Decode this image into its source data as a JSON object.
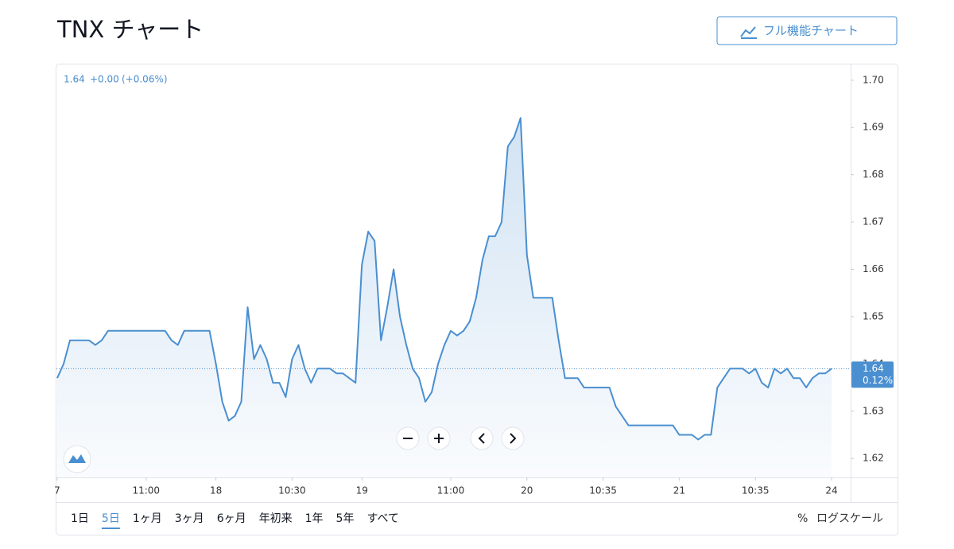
{
  "header": {
    "title": "TNX チャート",
    "button": "フル機能チャート"
  },
  "chart": {
    "type": "line",
    "legend": {
      "price": "1.64",
      "change": "+0.00",
      "change_pct": "(+0.06%)"
    },
    "last_badge": {
      "price": "1.64",
      "pct": "0.12%"
    },
    "color": "#4a8fd0",
    "ylim": [
      1.616,
      1.7035
    ],
    "yticks": [
      1.62,
      1.63,
      1.64,
      1.65,
      1.66,
      1.67,
      1.68,
      1.69,
      {
        "value": 1.7,
        "label": "1.70"
      }
    ],
    "categories": [
      "7",
      null,
      null,
      null,
      null,
      null,
      null,
      null,
      null,
      null,
      null,
      null,
      null,
      null,
      "11:00",
      null,
      null,
      null,
      null,
      null,
      null,
      null,
      null,
      null,
      null,
      "18",
      null,
      null,
      null,
      null,
      null,
      null,
      null,
      null,
      null,
      null,
      null,
      "10:30",
      null,
      null,
      null,
      null,
      null,
      null,
      null,
      null,
      null,
      null,
      "19",
      null,
      null,
      null,
      null,
      null,
      null,
      null,
      null,
      null,
      null,
      null,
      null,
      null,
      "11:00",
      null,
      null,
      null,
      null,
      null,
      null,
      null,
      null,
      null,
      null,
      null,
      "20",
      null,
      null,
      null,
      null,
      null,
      null,
      null,
      null,
      null,
      null,
      null,
      "10:35",
      null,
      null,
      null,
      null,
      null,
      null,
      null,
      null,
      null,
      null,
      null,
      "21",
      null,
      null,
      null,
      null,
      null,
      null,
      null,
      null,
      null,
      null,
      null,
      "10:35",
      null,
      null,
      null,
      null,
      null,
      null,
      null,
      null,
      null,
      null,
      null,
      "24"
    ],
    "values": [
      1.637,
      1.64,
      1.645,
      1.645,
      1.645,
      1.645,
      1.644,
      1.645,
      1.647,
      1.647,
      1.647,
      1.647,
      1.647,
      1.647,
      1.647,
      1.647,
      1.647,
      1.647,
      1.645,
      1.644,
      1.647,
      1.647,
      1.647,
      1.647,
      1.647,
      1.64,
      1.632,
      1.628,
      1.629,
      1.632,
      1.652,
      1.641,
      1.644,
      1.641,
      1.636,
      1.636,
      1.633,
      1.641,
      1.644,
      1.639,
      1.636,
      1.639,
      1.639,
      1.639,
      1.638,
      1.638,
      1.637,
      1.636,
      1.661,
      1.668,
      1.666,
      1.645,
      1.652,
      1.66,
      1.65,
      1.644,
      1.639,
      1.637,
      1.632,
      1.634,
      1.64,
      1.644,
      1.647,
      1.646,
      1.647,
      1.649,
      1.654,
      1.662,
      1.667,
      1.667,
      1.67,
      1.686,
      1.688,
      1.692,
      1.663,
      1.654,
      1.654,
      1.654,
      1.654,
      1.645,
      1.637,
      1.637,
      1.637,
      1.635,
      1.635,
      1.635,
      1.635,
      1.635,
      1.631,
      1.629,
      1.627,
      1.627,
      1.627,
      1.627,
      1.627,
      1.627,
      1.627,
      1.627,
      1.625,
      1.625,
      1.625,
      1.624,
      1.625,
      1.625,
      1.635,
      1.637,
      1.639,
      1.639,
      1.639,
      1.638,
      1.639,
      1.636,
      1.635,
      1.639,
      1.638,
      1.639,
      1.637,
      1.637,
      1.635,
      1.637,
      1.638,
      1.638,
      1.639
    ]
  },
  "ranges": {
    "items": [
      "1日",
      "5日",
      "1ヶ月",
      "3ヶ月",
      "6ヶ月",
      "年初来",
      "1年",
      "5年",
      "すべて"
    ],
    "selected": 1
  },
  "options": {
    "percent": "%",
    "log": "ログスケール"
  }
}
